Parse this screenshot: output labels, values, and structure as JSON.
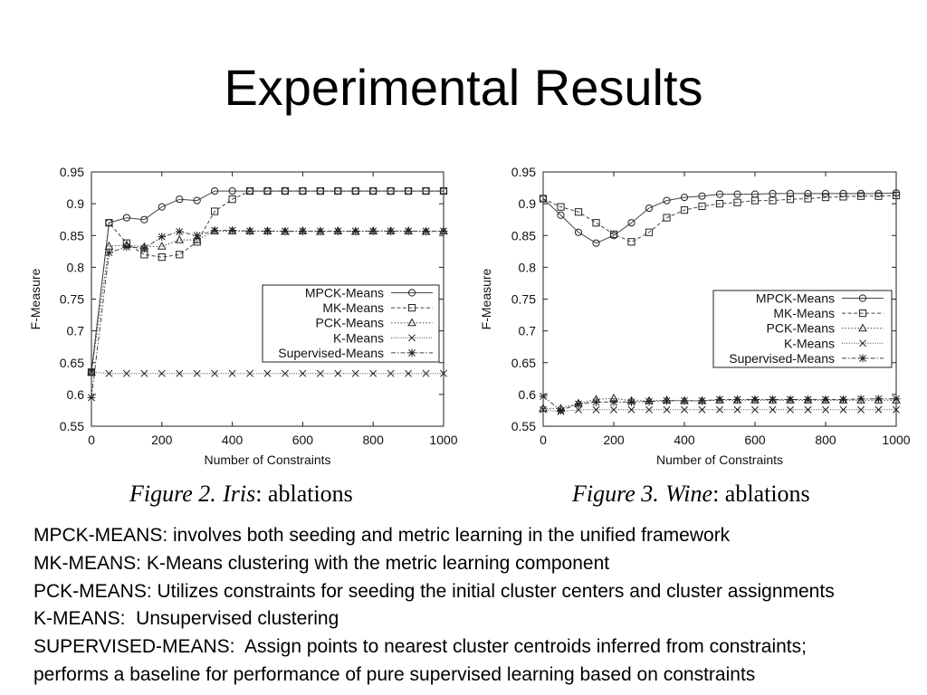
{
  "slide": {
    "title": "Experimental Results",
    "colors": {
      "background": "#ffffff",
      "text": "#000000",
      "series_line": "#444444"
    }
  },
  "chart_data": [
    {
      "type": "line",
      "caption": {
        "figure": "Figure 2.",
        "dataset": "Iris",
        "rest": ": ablations"
      },
      "xlabel": "Number of Constraints",
      "ylabel": "F-Measure",
      "xlim": [
        0,
        1000
      ],
      "ylim": [
        0.55,
        0.95
      ],
      "x_ticks": [
        "0",
        "200",
        "400",
        "600",
        "800",
        "1000"
      ],
      "y_ticks": [
        "0.55",
        "0.6",
        "0.65",
        "0.7",
        "0.75",
        "0.8",
        "0.85",
        "0.9",
        "0.95"
      ],
      "grid": false,
      "legend_position": "center-right",
      "x": [
        0,
        50,
        100,
        150,
        200,
        250,
        300,
        350,
        400,
        450,
        500,
        550,
        600,
        650,
        700,
        750,
        800,
        850,
        900,
        950,
        1000
      ],
      "series": [
        {
          "name": "MPCK-Means",
          "marker": "circle",
          "line_style": "solid",
          "values": [
            0.635,
            0.87,
            0.878,
            0.875,
            0.895,
            0.907,
            0.905,
            0.92,
            0.92,
            0.92,
            0.92,
            0.92,
            0.92,
            0.92,
            0.92,
            0.92,
            0.92,
            0.92,
            0.92,
            0.92,
            0.92
          ]
        },
        {
          "name": "MK-Means",
          "marker": "square",
          "line_style": "dashed",
          "values": [
            0.635,
            0.87,
            0.838,
            0.82,
            0.816,
            0.82,
            0.84,
            0.888,
            0.907,
            0.92,
            0.92,
            0.92,
            0.92,
            0.92,
            0.92,
            0.92,
            0.92,
            0.92,
            0.92,
            0.92,
            0.92
          ]
        },
        {
          "name": "PCK-Means",
          "marker": "triangle",
          "line_style": "dotted",
          "values": [
            0.635,
            0.833,
            0.835,
            0.832,
            0.833,
            0.843,
            0.843,
            0.857,
            0.857,
            0.857,
            0.857,
            0.856,
            0.857,
            0.856,
            0.857,
            0.856,
            0.857,
            0.857,
            0.857,
            0.856,
            0.857
          ]
        },
        {
          "name": "K-Means",
          "marker": "cross",
          "line_style": "fine_dotted",
          "values": [
            0.635,
            0.633,
            0.633,
            0.633,
            0.633,
            0.633,
            0.633,
            0.633,
            0.633,
            0.633,
            0.633,
            0.633,
            0.633,
            0.633,
            0.633,
            0.633,
            0.633,
            0.633,
            0.633,
            0.633,
            0.633
          ]
        },
        {
          "name": "Supervised-Means",
          "marker": "star",
          "line_style": "dash_dot",
          "values": [
            0.595,
            0.823,
            0.832,
            0.83,
            0.848,
            0.856,
            0.85,
            0.858,
            0.858,
            0.857,
            0.857,
            0.857,
            0.857,
            0.857,
            0.857,
            0.857,
            0.857,
            0.857,
            0.857,
            0.857,
            0.857
          ]
        }
      ]
    },
    {
      "type": "line",
      "caption": {
        "figure": "Figure 3.",
        "dataset": "Wine",
        "rest": ": ablations"
      },
      "xlabel": "Number of Constraints",
      "ylabel": "F-Measure",
      "xlim": [
        0,
        1000
      ],
      "ylim": [
        0.55,
        0.95
      ],
      "x_ticks": [
        "0",
        "200",
        "400",
        "600",
        "800",
        "1000"
      ],
      "y_ticks": [
        "0.55",
        "0.6",
        "0.65",
        "0.7",
        "0.75",
        "0.8",
        "0.85",
        "0.9",
        "0.95"
      ],
      "grid": false,
      "legend_position": "center-right",
      "x": [
        0,
        50,
        100,
        150,
        200,
        250,
        300,
        350,
        400,
        450,
        500,
        550,
        600,
        650,
        700,
        750,
        800,
        850,
        900,
        950,
        1000
      ],
      "series": [
        {
          "name": "MPCK-Means",
          "marker": "circle",
          "line_style": "solid",
          "values": [
            0.908,
            0.882,
            0.855,
            0.838,
            0.85,
            0.87,
            0.893,
            0.905,
            0.91,
            0.912,
            0.915,
            0.915,
            0.915,
            0.916,
            0.916,
            0.916,
            0.916,
            0.916,
            0.916,
            0.916,
            0.917
          ]
        },
        {
          "name": "MK-Means",
          "marker": "square",
          "line_style": "dashed",
          "values": [
            0.908,
            0.895,
            0.887,
            0.87,
            0.852,
            0.84,
            0.855,
            0.878,
            0.89,
            0.896,
            0.9,
            0.902,
            0.905,
            0.905,
            0.907,
            0.908,
            0.91,
            0.911,
            0.912,
            0.912,
            0.913
          ]
        },
        {
          "name": "PCK-Means",
          "marker": "triangle",
          "line_style": "dotted",
          "values": [
            0.578,
            0.578,
            0.586,
            0.592,
            0.594,
            0.59,
            0.59,
            0.591,
            0.59,
            0.59,
            0.591,
            0.591,
            0.591,
            0.591,
            0.591,
            0.591,
            0.591,
            0.591,
            0.591,
            0.591,
            0.591
          ]
        },
        {
          "name": "K-Means",
          "marker": "cross",
          "line_style": "fine_dotted",
          "values": [
            0.576,
            0.573,
            0.576,
            0.576,
            0.576,
            0.576,
            0.576,
            0.576,
            0.576,
            0.576,
            0.576,
            0.576,
            0.576,
            0.576,
            0.576,
            0.576,
            0.576,
            0.576,
            0.576,
            0.576,
            0.576
          ]
        },
        {
          "name": "Supervised-Means",
          "marker": "star",
          "line_style": "dash_dot",
          "values": [
            0.597,
            0.575,
            0.585,
            0.588,
            0.588,
            0.588,
            0.589,
            0.59,
            0.59,
            0.59,
            0.592,
            0.592,
            0.592,
            0.592,
            0.592,
            0.592,
            0.592,
            0.592,
            0.593,
            0.593,
            0.593
          ]
        }
      ]
    }
  ],
  "body": {
    "lines": [
      "MPCK-MEANS: involves both seeding and metric learning in the unified framework",
      "MK-MEANS: K-Means clustering with the metric learning component",
      "PCK-MEANS: Utilizes constraints for seeding the initial cluster centers and cluster assignments",
      "K-MEANS:  Unsupervised clustering",
      "SUPERVISED-MEANS:  Assign points to nearest cluster centroids inferred from constraints;",
      "performs a baseline for performance of pure supervised learning based on constraints"
    ]
  }
}
